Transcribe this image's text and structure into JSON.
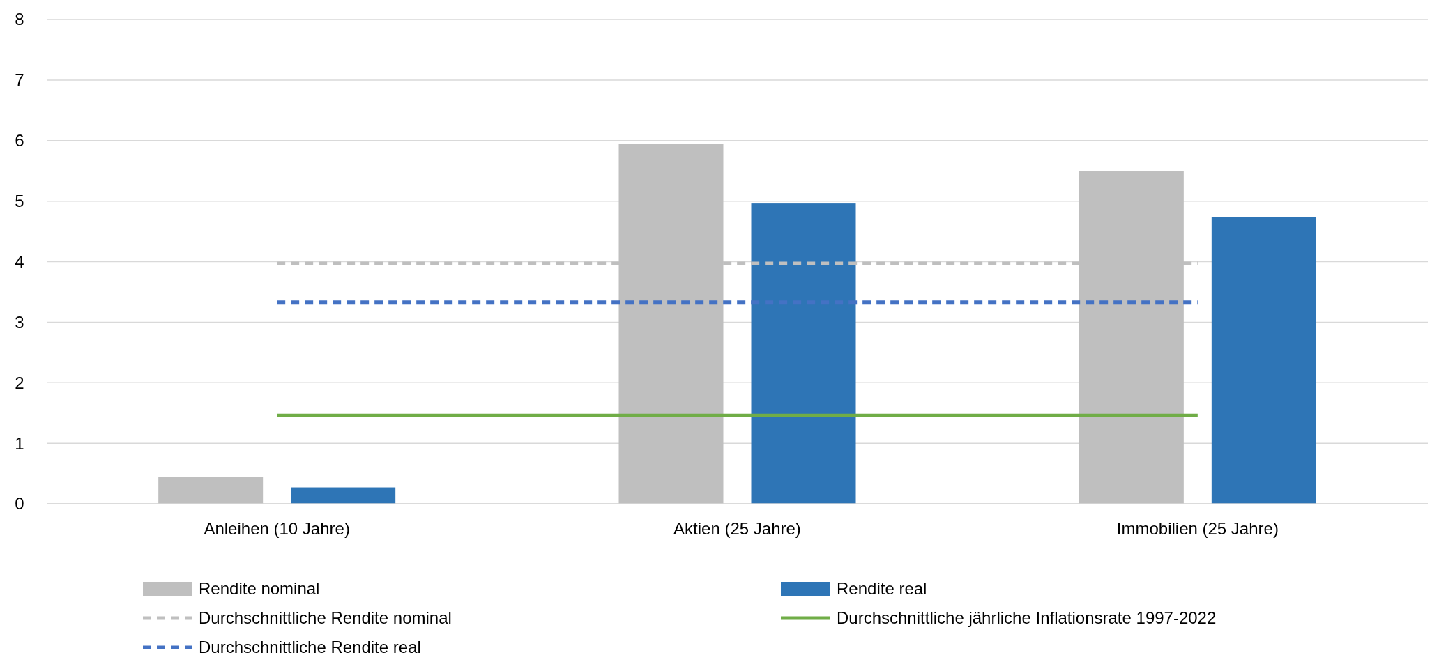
{
  "chart_data": {
    "type": "bar",
    "categories": [
      "Anleihen (10 Jahre)",
      "Aktien (25 Jahre)",
      "Immobilien (25 Jahre)"
    ],
    "ylim": [
      0,
      8
    ],
    "yticks": [
      0,
      1,
      2,
      3,
      4,
      5,
      6,
      7,
      8
    ],
    "grid": "y",
    "legend": "bottom",
    "series": [
      {
        "name": "Rendite nominal",
        "color": "#bfbfbf",
        "values": [
          0.44,
          5.95,
          5.5
        ]
      },
      {
        "name": "Rendite real",
        "color": "#2e75b6",
        "values": [
          0.27,
          4.96,
          4.74
        ]
      },
      {
        "name": "Durchschnittliche Rendite nominal",
        "type": "line",
        "line_style": "dashed",
        "color": "#bfbfbf",
        "values": [
          3.97,
          3.97,
          3.97
        ]
      },
      {
        "name": "Durchschnittliche jährliche Inflationsrate 1997-2022",
        "type": "line",
        "line_style": "solid",
        "color": "#70ad47",
        "values": [
          1.46,
          1.46,
          1.46
        ]
      },
      {
        "name": "Durchschnittliche Rendite real",
        "type": "line",
        "line_style": "dashed",
        "color": "#4472c4",
        "values": [
          3.33,
          3.33,
          3.33
        ]
      }
    ]
  }
}
